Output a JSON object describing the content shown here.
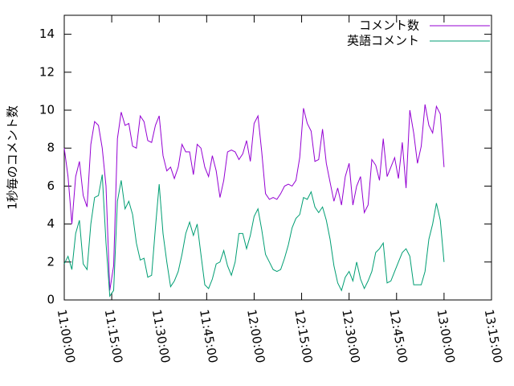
{
  "chart_data": {
    "type": "line",
    "ylabel": "1秒毎のコメント数",
    "legend": "top-right",
    "grid": false,
    "xlim": [
      "11:00:00",
      "13:15:00"
    ],
    "xticks": [
      "11:00:00",
      "11:15:00",
      "11:30:00",
      "11:45:00",
      "12:00:00",
      "12:15:00",
      "12:30:00",
      "12:45:00",
      "13:00:00",
      "13:15:00"
    ],
    "ylim": [
      0,
      15
    ],
    "yticks": [
      0,
      2,
      4,
      6,
      8,
      10,
      12,
      14
    ],
    "x": [
      "11:00:00",
      "11:01:12",
      "11:02:24",
      "11:03:36",
      "11:04:48",
      "11:06:00",
      "11:07:12",
      "11:08:24",
      "11:09:36",
      "11:10:48",
      "11:12:00",
      "11:13:12",
      "11:14:24",
      "11:15:36",
      "11:16:48",
      "11:18:00",
      "11:19:12",
      "11:20:24",
      "11:21:36",
      "11:22:48",
      "11:24:00",
      "11:25:12",
      "11:26:24",
      "11:27:36",
      "11:28:48",
      "11:30:00",
      "11:31:12",
      "11:32:24",
      "11:33:36",
      "11:34:48",
      "11:36:00",
      "11:37:12",
      "11:38:24",
      "11:39:36",
      "11:40:48",
      "11:42:00",
      "11:43:12",
      "11:44:24",
      "11:45:36",
      "11:46:48",
      "11:48:00",
      "11:49:12",
      "11:50:24",
      "11:51:36",
      "11:52:48",
      "11:54:00",
      "11:55:12",
      "11:56:24",
      "11:57:36",
      "11:58:48",
      "12:00:00",
      "12:01:12",
      "12:02:24",
      "12:03:36",
      "12:04:48",
      "12:06:00",
      "12:07:12",
      "12:08:24",
      "12:09:36",
      "12:10:48",
      "12:12:00",
      "12:13:12",
      "12:14:24",
      "12:15:36",
      "12:16:48",
      "12:18:00",
      "12:19:12",
      "12:20:24",
      "12:21:36",
      "12:22:48",
      "12:24:00",
      "12:25:12",
      "12:26:24",
      "12:27:36",
      "12:28:48",
      "12:30:00",
      "12:31:12",
      "12:32:24",
      "12:33:36",
      "12:34:48",
      "12:36:00",
      "12:37:12",
      "12:38:24",
      "12:39:36",
      "12:40:48",
      "12:42:00",
      "12:43:12",
      "12:44:24",
      "12:45:36",
      "12:46:48",
      "12:48:00",
      "12:49:12",
      "12:50:24",
      "12:51:36",
      "12:52:48",
      "12:54:00",
      "12:55:12",
      "12:56:24",
      "12:57:36",
      "12:58:48",
      "13:00:00"
    ],
    "series": [
      {
        "name": "コメント数",
        "color": "#9400d3",
        "values": [
          8.0,
          6.5,
          4.0,
          6.5,
          7.3,
          5.5,
          4.9,
          8.2,
          9.4,
          9.2,
          8.0,
          6.0,
          0.5,
          1.8,
          8.5,
          9.9,
          9.2,
          9.3,
          8.1,
          8.0,
          9.7,
          9.4,
          8.4,
          8.3,
          9.2,
          9.7,
          7.6,
          6.8,
          7.0,
          6.4,
          7.0,
          8.2,
          7.8,
          7.8,
          6.6,
          8.2,
          8.0,
          7.0,
          6.5,
          7.6,
          6.8,
          5.4,
          6.3,
          7.8,
          7.9,
          7.8,
          7.4,
          7.7,
          8.4,
          7.3,
          9.3,
          9.7,
          7.8,
          5.6,
          5.3,
          5.4,
          5.3,
          5.6,
          6.0,
          6.1,
          6.0,
          6.3,
          7.5,
          10.1,
          9.3,
          8.9,
          7.3,
          7.4,
          9.0,
          7.2,
          6.2,
          5.2,
          5.9,
          5.0,
          6.5,
          7.2,
          5.0,
          6.0,
          6.5,
          4.6,
          5.0,
          7.4,
          7.1,
          6.3,
          8.5,
          6.5,
          7.0,
          7.5,
          6.4,
          8.3,
          5.9,
          10.0,
          8.8,
          7.2,
          8.1,
          10.3,
          9.2,
          8.8,
          10.2,
          9.8,
          7.0
        ]
      },
      {
        "name": "英語コメント",
        "color": "#009e73",
        "values": [
          1.9,
          2.3,
          1.6,
          3.5,
          4.2,
          1.9,
          1.6,
          4.0,
          5.4,
          5.5,
          6.6,
          3.0,
          0.2,
          0.5,
          5.2,
          6.3,
          4.8,
          5.2,
          4.5,
          3.0,
          2.1,
          2.2,
          1.2,
          1.3,
          3.8,
          6.1,
          3.5,
          2.0,
          0.7,
          1.0,
          1.5,
          2.4,
          3.5,
          4.1,
          3.4,
          4.0,
          2.4,
          0.8,
          0.6,
          1.1,
          1.9,
          2.0,
          2.6,
          1.8,
          1.3,
          2.0,
          3.5,
          3.5,
          2.7,
          3.4,
          4.4,
          4.8,
          3.7,
          2.4,
          2.0,
          1.6,
          1.5,
          1.6,
          2.2,
          2.9,
          3.8,
          4.3,
          4.5,
          5.4,
          5.3,
          5.7,
          4.9,
          4.6,
          4.9,
          4.2,
          3.2,
          1.8,
          0.9,
          0.5,
          1.2,
          1.5,
          1.0,
          2.0,
          1.1,
          0.6,
          1.0,
          1.5,
          2.5,
          2.7,
          3.0,
          0.9,
          1.0,
          1.5,
          2.0,
          2.5,
          2.7,
          2.3,
          0.8,
          0.8,
          0.8,
          1.5,
          3.2,
          4.0,
          5.1,
          4.2,
          2.0
        ]
      }
    ]
  }
}
